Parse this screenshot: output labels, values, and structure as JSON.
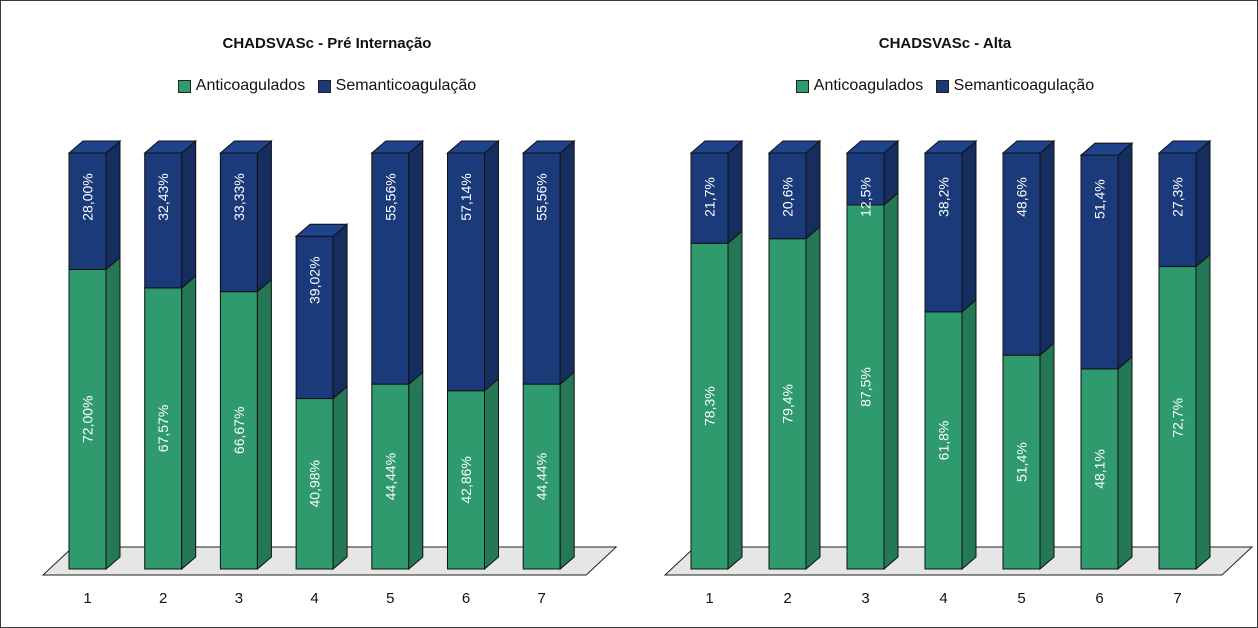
{
  "chart_data": [
    {
      "type": "bar",
      "stacked": true,
      "title": "CHADSVASc - Pré Internação",
      "categories": [
        "1",
        "2",
        "3",
        "4",
        "5",
        "6",
        "7"
      ],
      "series": [
        {
          "name": "Anticoagulados",
          "color": "#2e9a6e",
          "values": [
            72.0,
            67.57,
            66.67,
            40.98,
            44.44,
            42.86,
            44.44
          ],
          "labels": [
            "72,00%",
            "67,57%",
            "66,67%",
            "40,98%",
            "44,44%",
            "42,86%",
            "44,44%"
          ]
        },
        {
          "name": "Semanticoagulação",
          "color": "#1b3a7a",
          "values": [
            28.0,
            32.43,
            33.33,
            39.02,
            55.56,
            57.14,
            55.56
          ],
          "labels": [
            "28,00%",
            "32,43%",
            "33,33%",
            "39,02%",
            "55,56%",
            "57,14%",
            "55,56%"
          ]
        }
      ],
      "legend_position": "top",
      "grid": false
    },
    {
      "type": "bar",
      "stacked": true,
      "title": "CHADSVASc - Alta",
      "categories": [
        "1",
        "2",
        "3",
        "4",
        "5",
        "6",
        "7"
      ],
      "series": [
        {
          "name": "Anticoagulados",
          "color": "#2e9a6e",
          "values": [
            78.3,
            79.4,
            87.5,
            61.8,
            51.4,
            48.1,
            72.7
          ],
          "labels": [
            "78,3%",
            "79,4%",
            "87,5%",
            "61,8%",
            "51,4%",
            "48,1%",
            "72,7%"
          ]
        },
        {
          "name": "Semanticoagulação",
          "color": "#1b3a7a",
          "values": [
            21.7,
            20.6,
            12.5,
            38.2,
            48.6,
            51.4,
            27.3
          ],
          "labels": [
            "21,7%",
            "20,6%",
            "12,5%",
            "38,2%",
            "48,6%",
            "51,4%",
            "27,3%"
          ]
        }
      ],
      "legend_position": "top",
      "grid": false
    }
  ]
}
